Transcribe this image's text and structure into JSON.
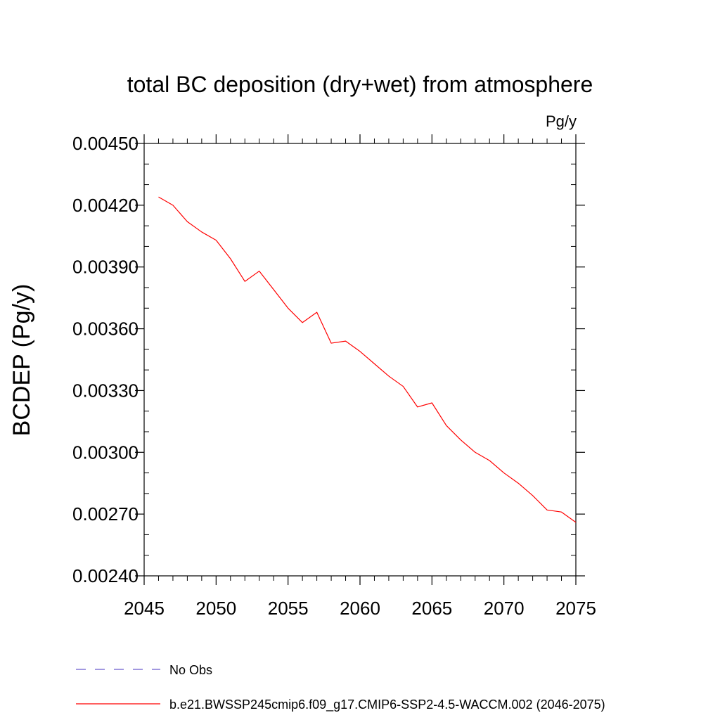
{
  "chart_data": {
    "type": "line",
    "title": "total BC deposition (dry+wet) from atmosphere",
    "units_label": "Pg/y",
    "xlabel": "",
    "ylabel": "BCDEP  (Pg/y)",
    "xlim": [
      2045,
      2075
    ],
    "ylim": [
      0.0024,
      0.0045
    ],
    "x_ticks": [
      2045,
      2050,
      2055,
      2060,
      2065,
      2070,
      2075
    ],
    "x_tick_labels": [
      "2045",
      "2050",
      "2055",
      "2060",
      "2065",
      "2070",
      "2075"
    ],
    "y_ticks": [
      0.0024,
      0.0027,
      0.003,
      0.0033,
      0.0036,
      0.0039,
      0.0042,
      0.0045
    ],
    "y_tick_labels": [
      "0.00240",
      "0.00270",
      "0.00300",
      "0.00330",
      "0.00360",
      "0.00390",
      "0.00420",
      "0.00450"
    ],
    "grid": false,
    "legend_position": "bottom",
    "series": [
      {
        "name": "b.e21.BWSSP245cmip6.f09_g17.CMIP6-SSP2-4.5-WACCM.002 (2046-2075)",
        "color": "#ff0000",
        "line_style": "solid",
        "x": [
          2046,
          2047,
          2048,
          2049,
          2050,
          2051,
          2052,
          2053,
          2054,
          2055,
          2056,
          2057,
          2058,
          2059,
          2060,
          2061,
          2062,
          2063,
          2064,
          2065,
          2066,
          2067,
          2068,
          2069,
          2070,
          2071,
          2072,
          2073,
          2074,
          2075
        ],
        "y": [
          0.00424,
          0.0042,
          0.00412,
          0.00407,
          0.00403,
          0.00394,
          0.00383,
          0.00388,
          0.00379,
          0.0037,
          0.00363,
          0.00368,
          0.00353,
          0.00354,
          0.00349,
          0.00343,
          0.00337,
          0.00332,
          0.00322,
          0.00324,
          0.00313,
          0.00306,
          0.003,
          0.00296,
          0.0029,
          0.00285,
          0.00279,
          0.00272,
          0.00271,
          0.00266
        ]
      }
    ],
    "legend_entries": [
      {
        "label": "No Obs",
        "color": "#6a5acd",
        "line_style": "dashed"
      },
      {
        "label": "b.e21.BWSSP245cmip6.f09_g17.CMIP6-SSP2-4.5-WACCM.002 (2046-2075)",
        "color": "#ff0000",
        "line_style": "solid"
      }
    ]
  }
}
